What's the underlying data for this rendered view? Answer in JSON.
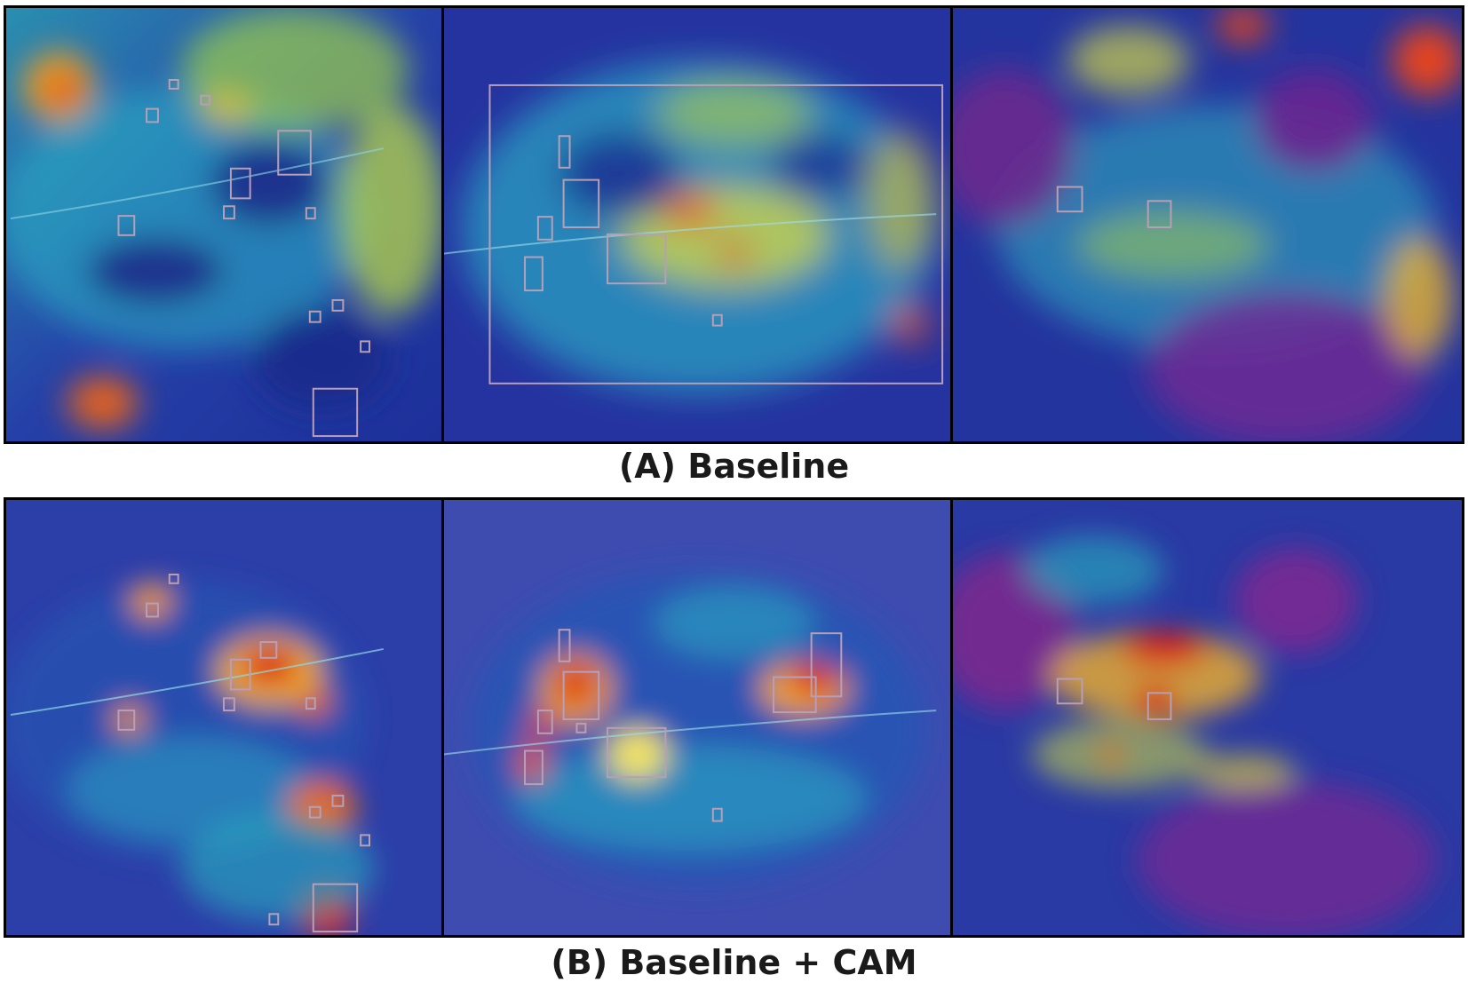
{
  "captions": {
    "row_a": "(A) Baseline",
    "row_b": "(B) Baseline + CAM"
  },
  "colors": {
    "frame": "#000000",
    "box": "#b99fb6",
    "cold": "#1d2f9a",
    "hot": "#d8231f"
  }
}
